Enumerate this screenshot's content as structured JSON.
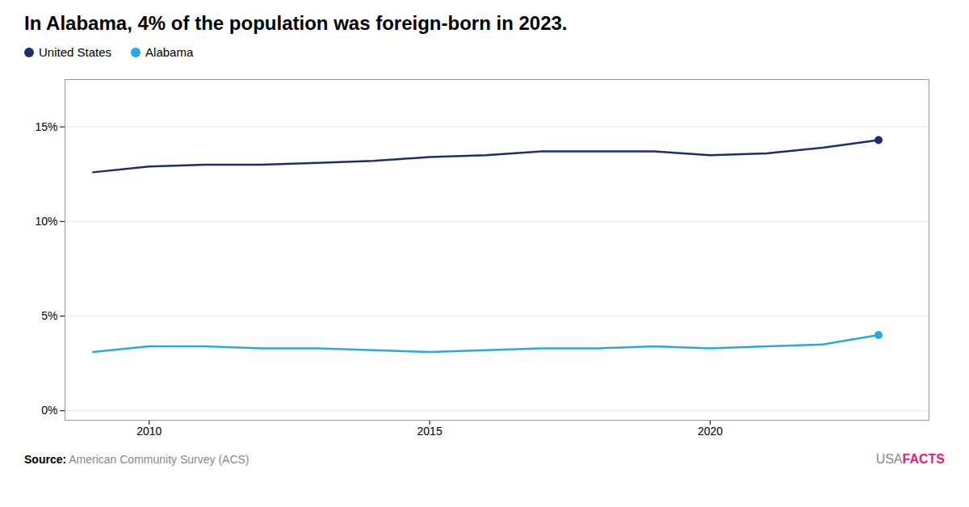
{
  "chart_data": {
    "type": "line",
    "title": "In Alabama, 4% of the population was foreign-born in 2023.",
    "x": [
      2009,
      2010,
      2011,
      2012,
      2013,
      2014,
      2015,
      2016,
      2017,
      2018,
      2019,
      2020,
      2021,
      2022,
      2023
    ],
    "xlim": [
      2008.5,
      2023.9
    ],
    "xticks": [
      2010,
      2015,
      2020
    ],
    "ylim": [
      -0.5,
      17.5
    ],
    "yticks": [
      {
        "value": 0,
        "label": "0%"
      },
      {
        "value": 5,
        "label": "5%"
      },
      {
        "value": 10,
        "label": "10%"
      },
      {
        "value": 15,
        "label": "15%"
      }
    ],
    "grid": "y",
    "legend": "top",
    "series": [
      {
        "name": "United States",
        "color": "#1a2f6e",
        "values": [
          12.6,
          12.9,
          13.0,
          13.0,
          13.1,
          13.2,
          13.4,
          13.5,
          13.7,
          13.7,
          13.7,
          13.5,
          13.6,
          13.9,
          14.3
        ]
      },
      {
        "name": "Alabama",
        "color": "#29a8e0",
        "values": [
          3.1,
          3.4,
          3.4,
          3.3,
          3.3,
          3.2,
          3.1,
          3.2,
          3.3,
          3.3,
          3.4,
          3.3,
          3.4,
          3.5,
          4.0
        ]
      }
    ],
    "caption": "Source: American Community Survey (ACS)",
    "annotations": [
      {
        "text": "USA",
        "color": "#888888"
      },
      {
        "text": "FACTS",
        "color": "#e8197d"
      }
    ]
  }
}
